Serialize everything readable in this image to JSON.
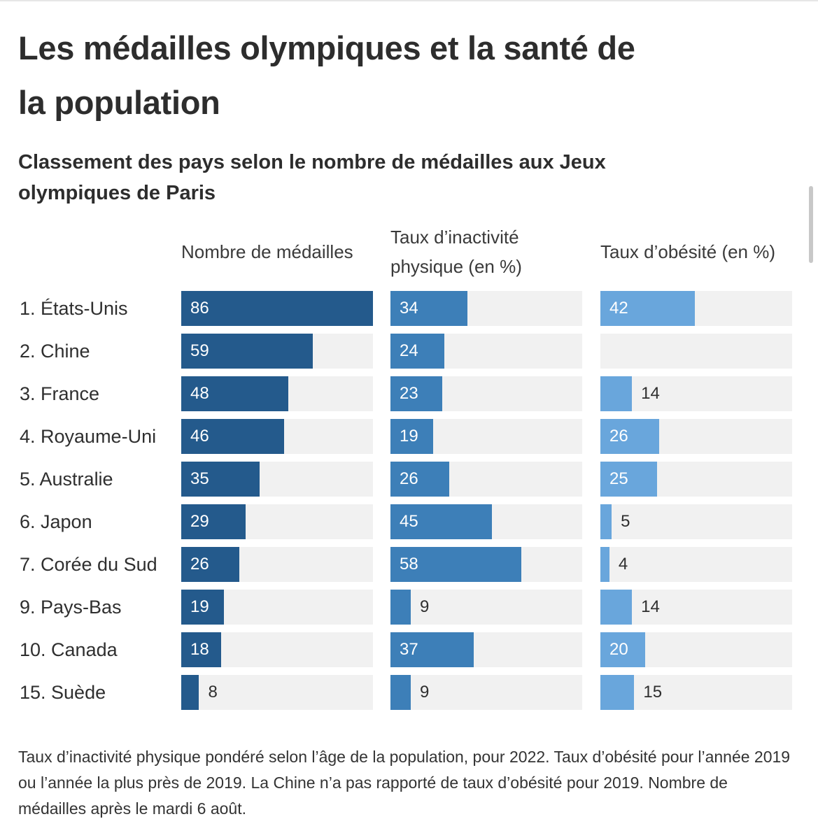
{
  "title": "Les médailles olympiques et la santé de la population",
  "subtitle": "Classement des pays selon le nombre de médailles aux Jeux olympiques de Paris",
  "columns": [
    {
      "header": "Nombre de médailles"
    },
    {
      "header": "Taux d’inactivité physique (en %)"
    },
    {
      "header": "Taux d’obésité (en %)"
    }
  ],
  "colors": {
    "medals": "#245a8c",
    "inactivity": "#3d7fb8",
    "obesity": "#69a6dc",
    "track": "#f1f1f1"
  },
  "chart_data": {
    "type": "bar",
    "title": "Les médailles olympiques et la santé de la population",
    "subtitle": "Classement des pays selon le nombre de médailles aux Jeux olympiques de Paris",
    "categories": [
      "1. États-Unis",
      "2. Chine",
      "3. France",
      "4. Royaume-Uni",
      "5. Australie",
      "6. Japon",
      "7. Corée du Sud",
      "9. Pays-Bas",
      "10. Canada",
      "15. Suède"
    ],
    "series": [
      {
        "name": "Nombre de médailles",
        "values": [
          86,
          59,
          48,
          46,
          35,
          29,
          26,
          19,
          18,
          8
        ],
        "xlim": [
          0,
          86
        ]
      },
      {
        "name": "Taux d’inactivité physique (en %)",
        "values": [
          34,
          24,
          23,
          19,
          26,
          45,
          58,
          9,
          37,
          9
        ],
        "xlim": [
          0,
          85
        ]
      },
      {
        "name": "Taux d’obésité (en %)",
        "values": [
          42,
          null,
          14,
          26,
          25,
          5,
          4,
          14,
          20,
          15
        ],
        "xlim": [
          0,
          85
        ]
      }
    ]
  },
  "footnote": "Taux d’inactivité physique pondéré selon l’âge de la population, pour 2022. Taux d’obésité pour l’année 2019 ou l’année la plus près de 2019. La Chine n’a pas rapporté de taux d’obésité pour 2019. Nombre de médailles après le mardi 6 août."
}
